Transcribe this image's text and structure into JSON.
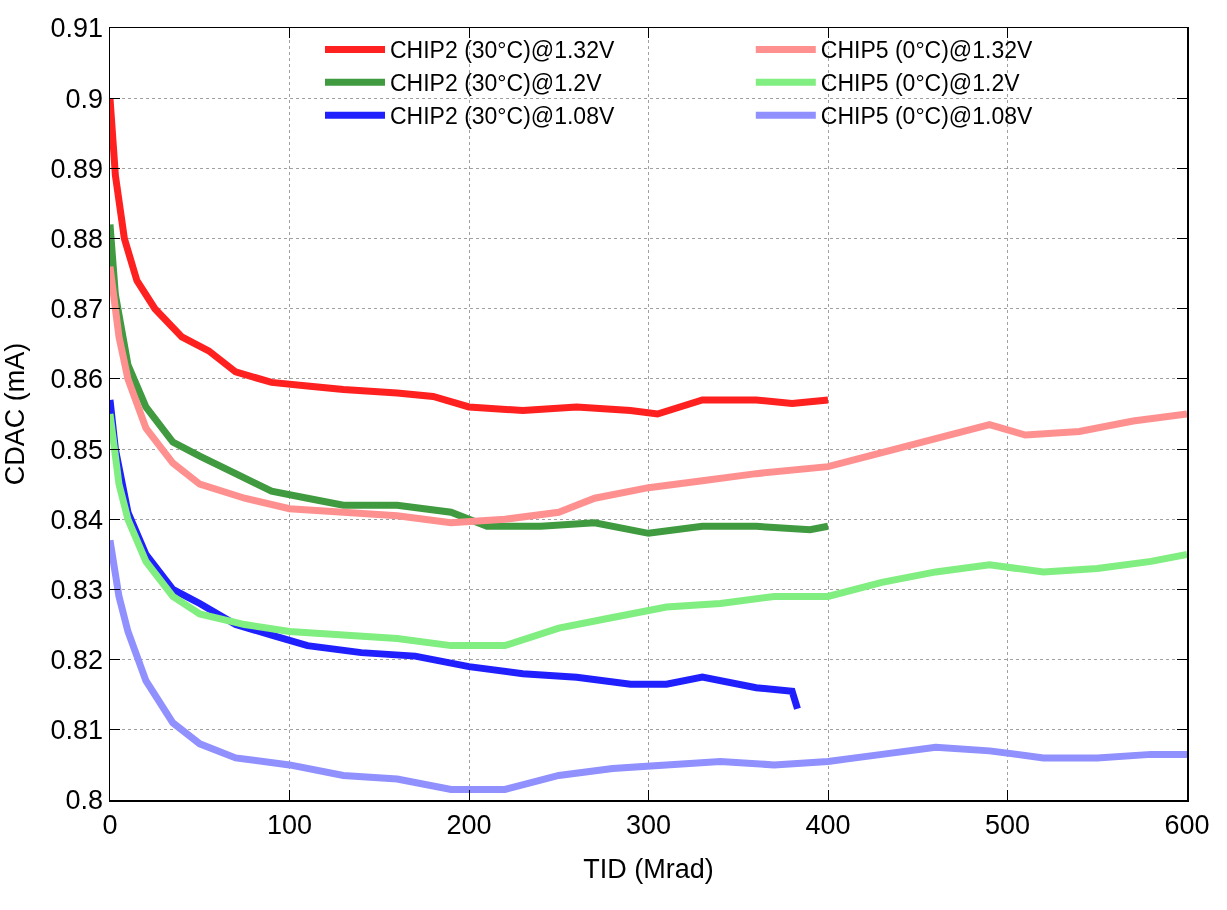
{
  "chart_data": {
    "type": "line",
    "xlabel": "TID (Mrad)",
    "ylabel": "CDAC (mA)",
    "xlim": [
      0,
      600
    ],
    "xticks": [
      0,
      100,
      200,
      300,
      400,
      500,
      600
    ],
    "ylim": [
      0.8,
      0.91
    ],
    "yticks": [
      0.8,
      0.81,
      0.82,
      0.83,
      0.84,
      0.85,
      0.86,
      0.87,
      0.88,
      0.89,
      0.9,
      0.91
    ],
    "grid": true,
    "legend": "top right",
    "line_style": "solid",
    "marker": "none",
    "series": [
      {
        "name": "CHIP2 (30°C)@1.32V",
        "color": "#ff2020",
        "x": [
          0,
          3,
          8,
          15,
          25,
          40,
          55,
          70,
          90,
          110,
          130,
          160,
          180,
          200,
          230,
          260,
          290,
          305,
          330,
          360,
          380,
          400
        ],
        "values": [
          0.9,
          0.889,
          0.88,
          0.874,
          0.87,
          0.866,
          0.864,
          0.861,
          0.8595,
          0.859,
          0.8585,
          0.858,
          0.8575,
          0.856,
          0.8555,
          0.856,
          0.8555,
          0.855,
          0.857,
          0.857,
          0.8565,
          0.857
        ]
      },
      {
        "name": "CHIP5 (0°C)@1.32V",
        "color": "#ff9090",
        "x": [
          0,
          5,
          10,
          20,
          35,
          50,
          75,
          100,
          130,
          160,
          190,
          220,
          250,
          270,
          300,
          330,
          360,
          400,
          430,
          460,
          490,
          510,
          540,
          570,
          600
        ],
        "values": [
          0.876,
          0.866,
          0.86,
          0.853,
          0.848,
          0.845,
          0.843,
          0.8415,
          0.841,
          0.8405,
          0.8395,
          0.84,
          0.841,
          0.843,
          0.8445,
          0.8455,
          0.8465,
          0.8475,
          0.8495,
          0.8515,
          0.8535,
          0.852,
          0.8525,
          0.854,
          0.855
        ]
      },
      {
        "name": "CHIP2 (30°C)@1.2V",
        "color": "#409a40",
        "x": [
          0,
          3,
          10,
          20,
          35,
          50,
          70,
          90,
          110,
          130,
          160,
          190,
          210,
          240,
          270,
          300,
          330,
          360,
          390,
          400
        ],
        "values": [
          0.882,
          0.872,
          0.862,
          0.856,
          0.851,
          0.849,
          0.8465,
          0.844,
          0.843,
          0.842,
          0.842,
          0.841,
          0.839,
          0.839,
          0.8395,
          0.838,
          0.839,
          0.839,
          0.8385,
          0.839
        ]
      },
      {
        "name": "CHIP5 (0°C)@1.2V",
        "color": "#80ee80",
        "x": [
          0,
          5,
          10,
          20,
          35,
          50,
          75,
          100,
          130,
          160,
          190,
          220,
          250,
          280,
          310,
          340,
          370,
          400,
          430,
          460,
          490,
          520,
          550,
          580,
          600
        ],
        "values": [
          0.855,
          0.845,
          0.84,
          0.834,
          0.829,
          0.8265,
          0.825,
          0.824,
          0.8235,
          0.823,
          0.822,
          0.822,
          0.8245,
          0.826,
          0.8275,
          0.828,
          0.829,
          0.829,
          0.831,
          0.8325,
          0.8335,
          0.8325,
          0.833,
          0.834,
          0.835
        ]
      },
      {
        "name": "CHIP2 (30°C)@1.08V",
        "color": "#2020ff",
        "x": [
          0,
          3,
          10,
          20,
          35,
          50,
          70,
          90,
          110,
          140,
          170,
          200,
          230,
          260,
          290,
          310,
          330,
          360,
          380,
          383
        ],
        "values": [
          0.857,
          0.85,
          0.841,
          0.835,
          0.83,
          0.828,
          0.825,
          0.8235,
          0.822,
          0.821,
          0.8205,
          0.819,
          0.818,
          0.8175,
          0.8165,
          0.8165,
          0.8175,
          0.816,
          0.8155,
          0.813
        ]
      },
      {
        "name": "CHIP5 (0°C)@1.08V",
        "color": "#9090ff",
        "x": [
          0,
          5,
          10,
          20,
          35,
          50,
          70,
          100,
          130,
          160,
          190,
          220,
          250,
          280,
          310,
          340,
          370,
          400,
          430,
          460,
          490,
          520,
          550,
          580,
          600
        ],
        "values": [
          0.837,
          0.829,
          0.824,
          0.817,
          0.811,
          0.808,
          0.806,
          0.805,
          0.8035,
          0.803,
          0.8015,
          0.8015,
          0.8035,
          0.8045,
          0.805,
          0.8055,
          0.805,
          0.8055,
          0.8065,
          0.8075,
          0.807,
          0.806,
          0.806,
          0.8065,
          0.8065
        ]
      }
    ]
  }
}
